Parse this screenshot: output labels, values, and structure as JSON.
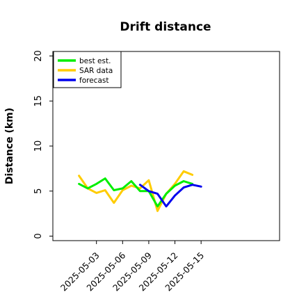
{
  "chart_data": {
    "type": "line",
    "title": "Drift distance",
    "xlabel": "",
    "ylabel": "Distance (km)",
    "ylim": [
      -0.5,
      20.5
    ],
    "xlim": [
      "2025-04-28",
      "2025-05-24"
    ],
    "yticks": [
      0,
      5,
      10,
      15,
      20
    ],
    "xticks": [
      "2025-05-03",
      "2025-05-06",
      "2025-05-09",
      "2025-05-12",
      "2025-05-15"
    ],
    "grid": false,
    "legend_position": "top-left",
    "series": [
      {
        "name": "best est.",
        "color": "#00ee00",
        "x": [
          "2025-05-01",
          "2025-05-02",
          "2025-05-03",
          "2025-05-04",
          "2025-05-05",
          "2025-05-06",
          "2025-05-07",
          "2025-05-08",
          "2025-05-09",
          "2025-05-10",
          "2025-05-11",
          "2025-05-12",
          "2025-05-13",
          "2025-05-14",
          "2025-05-15"
        ],
        "values": [
          5.8,
          5.3,
          5.8,
          6.4,
          5.1,
          5.3,
          6.1,
          5.0,
          5.0,
          3.3,
          4.7,
          5.6,
          6.1,
          5.8,
          null
        ]
      },
      {
        "name": "SAR data",
        "color": "#ffcc00",
        "x": [
          "2025-05-01",
          "2025-05-02",
          "2025-05-03",
          "2025-05-04",
          "2025-05-05",
          "2025-05-06",
          "2025-05-07",
          "2025-05-08",
          "2025-05-09",
          "2025-05-10",
          "2025-05-11",
          "2025-05-12",
          "2025-05-13",
          "2025-05-14",
          "2025-05-15"
        ],
        "values": [
          6.7,
          5.3,
          4.8,
          5.1,
          3.7,
          5.1,
          5.6,
          5.3,
          6.2,
          2.8,
          4.7,
          5.8,
          7.2,
          6.8,
          null
        ]
      },
      {
        "name": "forecast",
        "color": "#0000ee",
        "x": [
          "2025-05-08",
          "2025-05-09",
          "2025-05-10",
          "2025-05-11",
          "2025-05-12",
          "2025-05-13",
          "2025-05-14",
          "2025-05-15"
        ],
        "values": [
          5.7,
          5.0,
          4.7,
          3.3,
          4.5,
          5.4,
          5.7,
          5.5
        ]
      }
    ]
  }
}
